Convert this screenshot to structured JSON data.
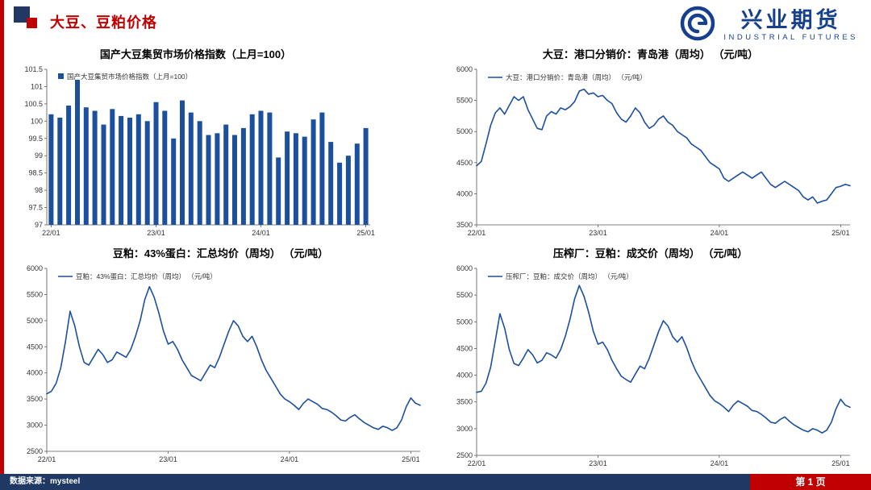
{
  "header": {
    "title": "大豆、豆粕价格",
    "logo": {
      "company": "兴业期货",
      "subtitle": "INDUSTRIAL FUTURES"
    }
  },
  "footer": {
    "source": "数据来源：mysteel",
    "page": "第 1 页"
  },
  "colors": {
    "accent_red": "#c00000",
    "footer_navy": "#1f3864",
    "logo_blue": "#16408c",
    "series_blue": "#1c4f9c"
  },
  "chart_data": [
    {
      "type": "bar",
      "title": "国产大豆集贸市场价格指数（上月=100）",
      "legend": "国产大豆集贸市场价格指数（上月=100）",
      "color": "#1c4f9c",
      "ylim": [
        97,
        101.5
      ],
      "yticks": [
        97,
        97.5,
        98,
        98.5,
        99,
        99.5,
        100,
        100.5,
        101,
        101.5
      ],
      "x_ticks": [
        {
          "index": 0,
          "label": "22/01"
        },
        {
          "index": 12,
          "label": "23/01"
        },
        {
          "index": 24,
          "label": "24/01"
        },
        {
          "index": 36,
          "label": "25/01"
        }
      ],
      "values": [
        100.2,
        100.1,
        100.45,
        101.2,
        100.4,
        100.3,
        99.9,
        100.35,
        100.15,
        100.1,
        100.2,
        100.0,
        100.55,
        100.3,
        99.5,
        100.6,
        100.25,
        100.0,
        99.6,
        99.65,
        99.9,
        99.6,
        99.8,
        100.2,
        100.3,
        100.25,
        98.95,
        99.7,
        99.65,
        99.55,
        100.05,
        100.25,
        99.4,
        98.8,
        99.0,
        99.35,
        99.8
      ]
    },
    {
      "type": "line",
      "title": "大豆：港口分销价：青岛港（周均）  （元/吨）",
      "legend": "大豆：港口分销价：青岛港（周均）  （元/吨）",
      "color": "#1c4f9c",
      "ylim": [
        3500,
        6000
      ],
      "yticks": [
        3500,
        4000,
        4500,
        5000,
        5500,
        6000
      ],
      "x_ticks": [
        {
          "index": 0,
          "label": "22/01"
        },
        {
          "index": 26,
          "label": "23/01"
        },
        {
          "index": 52,
          "label": "24/01"
        },
        {
          "index": 78,
          "label": "25/01"
        }
      ],
      "values": [
        4450,
        4520,
        4800,
        5100,
        5300,
        5380,
        5280,
        5420,
        5560,
        5500,
        5560,
        5350,
        5200,
        5050,
        5030,
        5250,
        5320,
        5280,
        5380,
        5350,
        5400,
        5480,
        5650,
        5680,
        5600,
        5620,
        5560,
        5580,
        5500,
        5450,
        5300,
        5200,
        5150,
        5250,
        5380,
        5300,
        5150,
        5050,
        5100,
        5200,
        5250,
        5150,
        5100,
        5000,
        4950,
        4900,
        4800,
        4750,
        4700,
        4600,
        4500,
        4450,
        4400,
        4250,
        4200,
        4250,
        4300,
        4350,
        4300,
        4250,
        4300,
        4350,
        4250,
        4150,
        4100,
        4150,
        4200,
        4150,
        4100,
        4050,
        3950,
        3900,
        3950,
        3850,
        3880,
        3900,
        4000,
        4100,
        4120,
        4150,
        4130
      ]
    },
    {
      "type": "line",
      "title": "豆粕：43%蛋白：汇总均价（周均）  （元/吨）",
      "legend": "豆粕：43%蛋白：汇总均价（周均）  （元/吨）",
      "color": "#1c4f9c",
      "ylim": [
        2500,
        6000
      ],
      "yticks": [
        2500,
        3000,
        3500,
        4000,
        4500,
        5000,
        5500,
        6000
      ],
      "x_ticks": [
        {
          "index": 0,
          "label": "22/01"
        },
        {
          "index": 26,
          "label": "23/01"
        },
        {
          "index": 52,
          "label": "24/01"
        },
        {
          "index": 78,
          "label": "25/01"
        }
      ],
      "values": [
        3600,
        3650,
        3800,
        4100,
        4600,
        5180,
        4900,
        4500,
        4200,
        4150,
        4300,
        4450,
        4350,
        4200,
        4250,
        4400,
        4350,
        4300,
        4450,
        4700,
        5000,
        5400,
        5650,
        5450,
        5150,
        4800,
        4550,
        4600,
        4450,
        4250,
        4100,
        3950,
        3900,
        3850,
        4000,
        4150,
        4100,
        4300,
        4550,
        4800,
        5000,
        4900,
        4700,
        4600,
        4700,
        4500,
        4250,
        4050,
        3900,
        3750,
        3600,
        3500,
        3450,
        3380,
        3300,
        3420,
        3500,
        3450,
        3400,
        3320,
        3300,
        3250,
        3180,
        3100,
        3080,
        3150,
        3200,
        3120,
        3050,
        3000,
        2950,
        2920,
        2980,
        2950,
        2900,
        2950,
        3100,
        3350,
        3520,
        3420,
        3380
      ]
    },
    {
      "type": "line",
      "title": "压榨厂：豆粕：成交价（周均）  （元/吨）",
      "legend": "压榨厂：豆粕：成交价（周均）  （元/吨）",
      "color": "#1c4f9c",
      "ylim": [
        2500,
        6000
      ],
      "yticks": [
        2500,
        3000,
        3500,
        4000,
        4500,
        5000,
        5500,
        6000
      ],
      "x_ticks": [
        {
          "index": 0,
          "label": "22/01"
        },
        {
          "index": 26,
          "label": "23/01"
        },
        {
          "index": 52,
          "label": "24/01"
        },
        {
          "index": 78,
          "label": "25/01"
        }
      ],
      "values": [
        3680,
        3700,
        3850,
        4150,
        4650,
        5150,
        4880,
        4480,
        4220,
        4180,
        4320,
        4480,
        4380,
        4230,
        4280,
        4420,
        4380,
        4320,
        4480,
        4730,
        5050,
        5430,
        5680,
        5480,
        5180,
        4820,
        4580,
        4620,
        4480,
        4280,
        4120,
        3980,
        3920,
        3870,
        4020,
        4170,
        4120,
        4320,
        4570,
        4820,
        5020,
        4920,
        4720,
        4620,
        4720,
        4520,
        4270,
        4070,
        3920,
        3770,
        3620,
        3520,
        3470,
        3400,
        3320,
        3440,
        3520,
        3470,
        3420,
        3340,
        3320,
        3270,
        3200,
        3120,
        3100,
        3170,
        3220,
        3140,
        3070,
        3020,
        2970,
        2940,
        3000,
        2970,
        2920,
        2970,
        3120,
        3370,
        3550,
        3440,
        3400
      ]
    }
  ]
}
